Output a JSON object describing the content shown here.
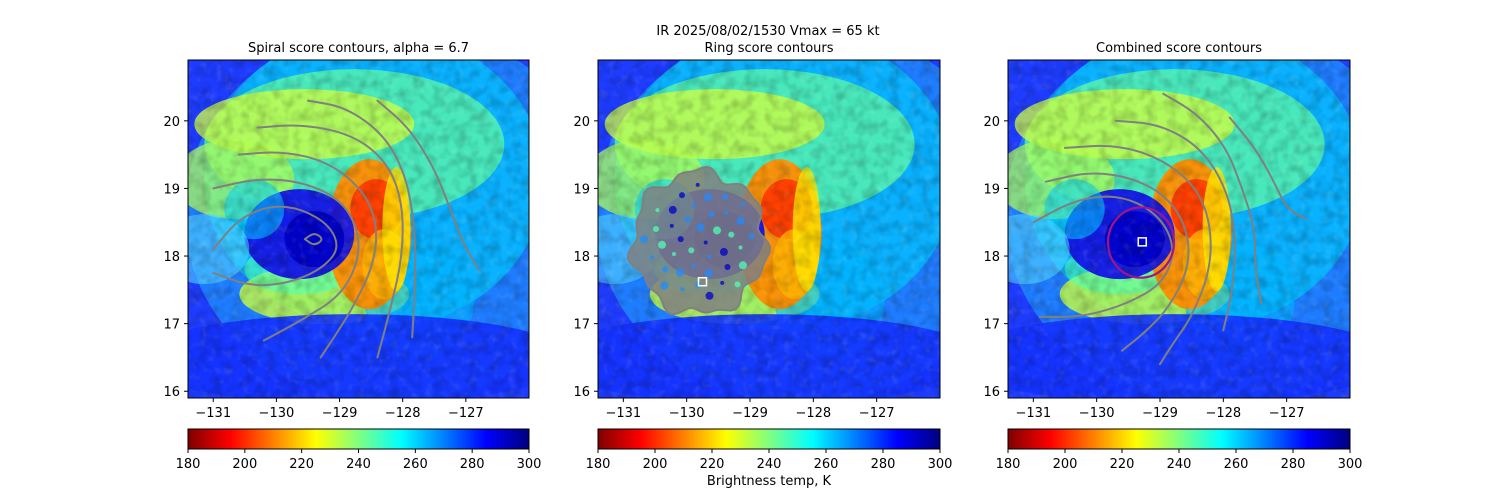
{
  "suptitle": {
    "line1": "IR  2025/08/02/1530    Vmax = 65 kt"
  },
  "colorbar_label": "Brightness temp, K",
  "colormap": {
    "name": "jet_r",
    "stops": [
      "#800000",
      "#ff0000",
      "#ff8000",
      "#ffff00",
      "#80ff80",
      "#00ffff",
      "#0080ff",
      "#0000ff",
      "#000080"
    ]
  },
  "contour_color": "#808080",
  "marker_color": "#ffffff",
  "ring_color": "#a0148c",
  "chart_data": [
    {
      "type": "heatmap",
      "title": "Spiral score contours, alpha =  6.7",
      "xlabel": "",
      "ylabel": "",
      "xlim": [
        -131.4,
        -126.0
      ],
      "ylim": [
        15.9,
        20.9
      ],
      "xticks": [
        -131,
        -130,
        -129,
        -128,
        -127
      ],
      "xtick_labels": [
        "−131",
        "−130",
        "−129",
        "−128",
        "−127"
      ],
      "yticks": [
        16,
        17,
        18,
        19,
        20
      ],
      "ytick_labels": [
        "16",
        "17",
        "18",
        "19",
        "20"
      ],
      "colorbar": {
        "min": 180,
        "max": 300,
        "ticks": [
          180,
          200,
          220,
          240,
          260,
          280,
          300
        ]
      },
      "center": {
        "lon": -129.4,
        "lat": 18.25
      },
      "overlay": "spiral_contours",
      "spiral_contours": [
        {
          "points": [
            [
              -129.55,
              18.25
            ],
            [
              -129.4,
              18.35
            ],
            [
              -129.25,
              18.25
            ],
            [
              -129.4,
              18.15
            ],
            [
              -129.55,
              18.25
            ]
          ]
        },
        {
          "points": [
            [
              -131.0,
              18.1
            ],
            [
              -130.6,
              18.55
            ],
            [
              -130.1,
              18.75
            ],
            [
              -129.6,
              18.7
            ],
            [
              -129.15,
              18.45
            ],
            [
              -129.0,
              18.1
            ],
            [
              -129.3,
              17.8
            ],
            [
              -129.8,
              17.6
            ],
            [
              -130.4,
              17.55
            ],
            [
              -131.0,
              17.75
            ]
          ]
        },
        {
          "points": [
            [
              -131.0,
              19.0
            ],
            [
              -130.3,
              19.15
            ],
            [
              -129.6,
              19.1
            ],
            [
              -129.0,
              18.85
            ],
            [
              -128.7,
              18.4
            ],
            [
              -128.7,
              17.9
            ],
            [
              -129.0,
              17.4
            ],
            [
              -129.6,
              17.05
            ],
            [
              -130.2,
              16.75
            ]
          ]
        },
        {
          "points": [
            [
              -130.6,
              19.5
            ],
            [
              -129.9,
              19.55
            ],
            [
              -129.2,
              19.4
            ],
            [
              -128.65,
              19.0
            ],
            [
              -128.4,
              18.5
            ],
            [
              -128.45,
              17.9
            ],
            [
              -128.75,
              17.3
            ],
            [
              -129.05,
              16.85
            ],
            [
              -129.3,
              16.5
            ]
          ]
        },
        {
          "points": [
            [
              -130.3,
              19.9
            ],
            [
              -129.6,
              19.95
            ],
            [
              -128.8,
              19.8
            ],
            [
              -128.25,
              19.4
            ],
            [
              -128.0,
              18.8
            ],
            [
              -128.0,
              18.0
            ],
            [
              -128.2,
              17.2
            ],
            [
              -128.4,
              16.5
            ]
          ]
        },
        {
          "points": [
            [
              -129.5,
              20.3
            ],
            [
              -128.9,
              20.2
            ],
            [
              -128.3,
              19.8
            ],
            [
              -127.95,
              19.2
            ],
            [
              -127.8,
              18.4
            ],
            [
              -127.8,
              17.6
            ],
            [
              -127.85,
              16.8
            ]
          ]
        },
        {
          "points": [
            [
              -128.4,
              20.3
            ],
            [
              -127.9,
              19.9
            ],
            [
              -127.5,
              19.3
            ],
            [
              -127.25,
              18.7
            ],
            [
              -127.05,
              18.2
            ],
            [
              -126.8,
              17.8
            ]
          ]
        }
      ]
    },
    {
      "type": "heatmap",
      "title": "Ring score contours",
      "xlabel": "",
      "ylabel": "",
      "xlim": [
        -131.4,
        -126.0
      ],
      "ylim": [
        15.9,
        20.9
      ],
      "xticks": [
        -131,
        -130,
        -129,
        -128,
        -127
      ],
      "xtick_labels": [
        "−131",
        "−130",
        "−129",
        "−128",
        "−127"
      ],
      "yticks": [
        16,
        17,
        18,
        19,
        20
      ],
      "ytick_labels": [
        "16",
        "17",
        "18",
        "19",
        "20"
      ],
      "colorbar": {
        "min": 180,
        "max": 300,
        "ticks": [
          180,
          200,
          220,
          240,
          260,
          280,
          300
        ]
      },
      "center": {
        "lon": -129.4,
        "lat": 18.25
      },
      "overlay": "ring_blob",
      "ring_blob": {
        "center_lon": -129.8,
        "center_lat": 18.2,
        "radius_deg": 1.05
      },
      "marker": {
        "lon": -129.75,
        "lat": 17.62
      }
    },
    {
      "type": "heatmap",
      "title": "Combined score contours",
      "xlabel": "",
      "ylabel": "",
      "xlim": [
        -131.4,
        -126.0
      ],
      "ylim": [
        15.9,
        20.9
      ],
      "xticks": [
        -131,
        -130,
        -129,
        -128,
        -127
      ],
      "xtick_labels": [
        "−131",
        "−130",
        "−129",
        "−128",
        "−127"
      ],
      "yticks": [
        16,
        17,
        18,
        19,
        20
      ],
      "ytick_labels": [
        "16",
        "17",
        "18",
        "19",
        "20"
      ],
      "colorbar": {
        "min": 180,
        "max": 300,
        "ticks": [
          180,
          200,
          220,
          240,
          260,
          280,
          300
        ]
      },
      "center": {
        "lon": -129.4,
        "lat": 18.25
      },
      "overlay": "combined_contours",
      "combined_ring": {
        "center_lon": -129.3,
        "center_lat": 18.2,
        "radius_deg": 0.52
      },
      "marker": {
        "lon": -129.28,
        "lat": 18.21
      },
      "combined_contours": [
        {
          "points": [
            [
              -131.0,
              18.5
            ],
            [
              -130.3,
              18.85
            ],
            [
              -129.6,
              18.9
            ],
            [
              -129.0,
              18.6
            ],
            [
              -128.75,
              18.1
            ],
            [
              -128.95,
              17.6
            ],
            [
              -129.5,
              17.3
            ],
            [
              -130.2,
              17.1
            ],
            [
              -130.9,
              17.1
            ]
          ]
        },
        {
          "points": [
            [
              -130.8,
              19.1
            ],
            [
              -130.1,
              19.25
            ],
            [
              -129.4,
              19.15
            ],
            [
              -128.85,
              18.85
            ],
            [
              -128.55,
              18.35
            ],
            [
              -128.55,
              17.8
            ],
            [
              -128.85,
              17.25
            ],
            [
              -129.2,
              16.9
            ],
            [
              -129.6,
              16.6
            ]
          ]
        },
        {
          "points": [
            [
              -130.5,
              19.6
            ],
            [
              -129.7,
              19.65
            ],
            [
              -129.0,
              19.45
            ],
            [
              -128.45,
              19.05
            ],
            [
              -128.2,
              18.5
            ],
            [
              -128.2,
              17.8
            ],
            [
              -128.5,
              17.1
            ],
            [
              -128.8,
              16.7
            ],
            [
              -129.0,
              16.4
            ]
          ]
        },
        {
          "points": [
            [
              -129.7,
              20.0
            ],
            [
              -129.0,
              19.95
            ],
            [
              -128.35,
              19.6
            ],
            [
              -127.95,
              19.0
            ],
            [
              -127.8,
              18.3
            ],
            [
              -127.85,
              17.5
            ],
            [
              -128.0,
              16.9
            ]
          ]
        },
        {
          "points": [
            [
              -128.95,
              20.4
            ],
            [
              -128.4,
              20.1
            ],
            [
              -127.95,
              19.6
            ],
            [
              -127.7,
              19.0
            ],
            [
              -127.5,
              18.4
            ],
            [
              -127.5,
              17.8
            ],
            [
              -127.4,
              17.3
            ]
          ]
        },
        {
          "points": [
            [
              -127.9,
              20.05
            ],
            [
              -127.5,
              19.6
            ],
            [
              -127.2,
              19.1
            ],
            [
              -127.0,
              18.7
            ],
            [
              -126.7,
              18.55
            ]
          ]
        }
      ]
    }
  ]
}
